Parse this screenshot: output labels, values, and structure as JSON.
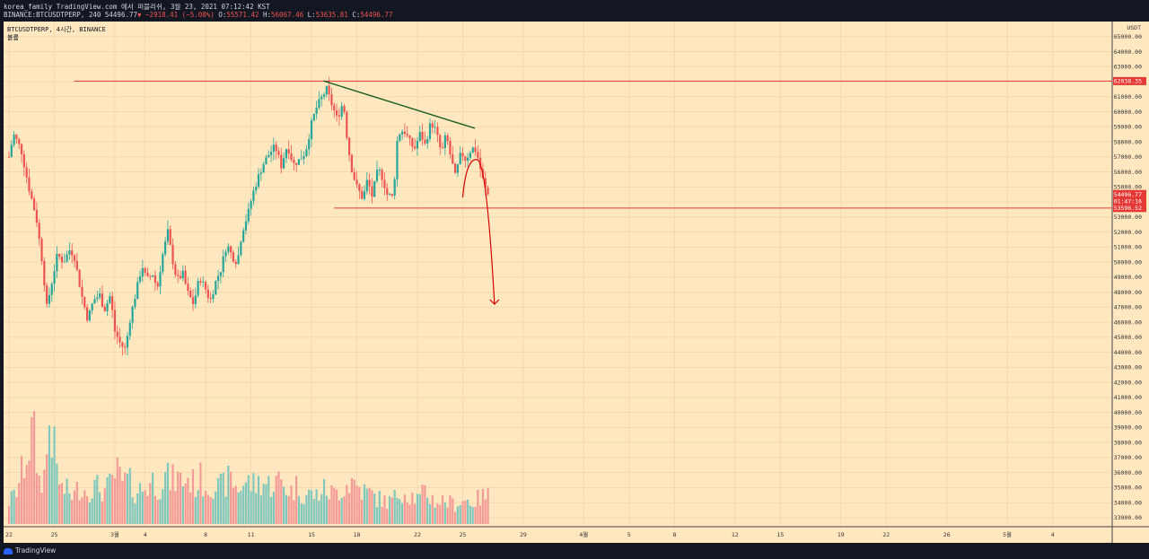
{
  "header": {
    "line1": "korea_family TradingView.com 에서 퍼블리쉬, 3월 23, 2021 07:12:42 KST",
    "symbol": "BINANCE:BTCUSDTPERP, 240",
    "price": "54496.77",
    "arrow": "▼",
    "change": "−2918.41 (−5.08%)",
    "o_label": "O:",
    "o_value": "55571.42",
    "h_label": "H:",
    "h_value": "56067.46",
    "l_label": "L:",
    "l_value": "53635.81",
    "c_label": "C:",
    "c_value": "54496.77"
  },
  "legend": {
    "title": "BTCUSDTPERP, 4시간, BINANCE",
    "volume": "볼륨"
  },
  "footer": {
    "brand": "TradingView"
  },
  "colors": {
    "background": "#ffe8c0",
    "up": "#26a69a",
    "down": "#ef5350",
    "vol_up": "#80c7bd",
    "vol_down": "#f49a98",
    "resistance": "#e53935",
    "trendline": "#1b5e20",
    "projection": "#d50000"
  },
  "chart_data": {
    "type": "candlestick",
    "axis_unit": "USDT",
    "ylim": [
      32400,
      66000
    ],
    "y_ticks": [
      33000,
      34000,
      35000,
      36000,
      37000,
      38000,
      39000,
      40000,
      41000,
      42000,
      43000,
      44000,
      45000,
      46000,
      47000,
      48000,
      49000,
      50000,
      51000,
      52000,
      53000,
      54000,
      55000,
      56000,
      57000,
      58000,
      59000,
      60000,
      61000,
      62000,
      63000,
      64000,
      65000
    ],
    "y_tick_labels": [
      "33000.00",
      "34000.00",
      "35000.00",
      "36000.00",
      "37000.00",
      "38000.00",
      "39000.00",
      "40000.00",
      "41000.00",
      "42000.00",
      "43000.00",
      "44000.00",
      "45000.00",
      "46000.00",
      "47000.00",
      "48000.00",
      "49000.00",
      "50000.00",
      "51000.00",
      "52000.00",
      "53000.00",
      "54000.00",
      "55000.00",
      "56000.00",
      "57000.00",
      "58000.00",
      "59000.00",
      "60000.00",
      "61000.00",
      "62000.00",
      "63000.00",
      "64000.00",
      "65000.00"
    ],
    "x_ticks": [
      "22",
      "25",
      "3월",
      "4",
      "8",
      "11",
      "15",
      "18",
      "22",
      "25",
      "29",
      "4월",
      "5",
      "8",
      "12",
      "15",
      "19",
      "22",
      "26",
      "5월",
      "4"
    ],
    "x_tick_days": [
      0,
      3,
      7,
      9,
      13,
      16,
      20,
      23,
      27,
      30,
      34,
      38,
      41,
      44,
      48,
      51,
      55,
      58,
      62,
      66,
      69
    ],
    "levels": [
      {
        "name": "resistance",
        "price": 62038.35,
        "label": "62038.35",
        "start_day": 4.3
      },
      {
        "name": "support",
        "price": 53596.52,
        "label": "53596.52",
        "start_day": 21.5
      },
      {
        "name": "last-price",
        "price": 54496.77,
        "label": "54496.77",
        "countdown": "01:47:16"
      }
    ],
    "trendline": {
      "from": {
        "day": 20.8,
        "price": 62050
      },
      "to": {
        "day": 30.8,
        "price": 58900
      }
    },
    "projection": {
      "from": {
        "day": 30.0,
        "price": 54300
      },
      "peak": {
        "day": 31.0,
        "price": 56800
      },
      "to": {
        "day": 32.1,
        "price": 47200
      }
    },
    "close_path": [
      [
        0,
        57000
      ],
      [
        0.3,
        58500
      ],
      [
        0.8,
        57500
      ],
      [
        1.3,
        55000
      ],
      [
        1.8,
        53000
      ],
      [
        2.2,
        50000
      ],
      [
        2.5,
        47000
      ],
      [
        2.8,
        48500
      ],
      [
        3.2,
        50500
      ],
      [
        3.6,
        50000
      ],
      [
        4.0,
        50800
      ],
      [
        4.3,
        50500
      ],
      [
        4.8,
        47800
      ],
      [
        5.2,
        46200
      ],
      [
        5.6,
        47500
      ],
      [
        6.0,
        47800
      ],
      [
        6.3,
        46800
      ],
      [
        6.7,
        47800
      ],
      [
        7.0,
        45400
      ],
      [
        7.4,
        44500
      ],
      [
        7.7,
        44200
      ],
      [
        8.0,
        46200
      ],
      [
        8.4,
        48000
      ],
      [
        8.8,
        49800
      ],
      [
        9.1,
        48800
      ],
      [
        9.5,
        49200
      ],
      [
        9.8,
        48200
      ],
      [
        10.1,
        50200
      ],
      [
        10.5,
        52000
      ],
      [
        10.8,
        50200
      ],
      [
        11.1,
        48800
      ],
      [
        11.5,
        49200
      ],
      [
        11.8,
        48000
      ],
      [
        12.2,
        47200
      ],
      [
        12.6,
        49000
      ],
      [
        13.0,
        48200
      ],
      [
        13.3,
        47400
      ],
      [
        13.7,
        48800
      ],
      [
        14.0,
        49500
      ],
      [
        14.4,
        51200
      ],
      [
        14.8,
        50300
      ],
      [
        15.1,
        50000
      ],
      [
        15.4,
        52000
      ],
      [
        15.8,
        53200
      ],
      [
        16.1,
        54500
      ],
      [
        16.5,
        55700
      ],
      [
        16.8,
        56500
      ],
      [
        17.2,
        57200
      ],
      [
        17.6,
        57700
      ],
      [
        18.0,
        56400
      ],
      [
        18.4,
        57800
      ],
      [
        18.8,
        56500
      ],
      [
        19.2,
        56800
      ],
      [
        19.6,
        57300
      ],
      [
        20.0,
        59200
      ],
      [
        20.3,
        60200
      ],
      [
        20.6,
        60800
      ],
      [
        21.0,
        61500
      ],
      [
        21.3,
        60600
      ],
      [
        21.7,
        59500
      ],
      [
        22.1,
        60700
      ],
      [
        22.4,
        57800
      ],
      [
        22.7,
        56000
      ],
      [
        23.0,
        55000
      ],
      [
        23.4,
        54200
      ],
      [
        23.7,
        55500
      ],
      [
        24.0,
        54400
      ],
      [
        24.4,
        56200
      ],
      [
        24.7,
        55600
      ],
      [
        25.0,
        54500
      ],
      [
        25.4,
        54300
      ],
      [
        25.7,
        58500
      ],
      [
        26.1,
        58800
      ],
      [
        26.5,
        58000
      ],
      [
        26.8,
        57500
      ],
      [
        27.2,
        58600
      ],
      [
        27.5,
        57800
      ],
      [
        27.9,
        59300
      ],
      [
        28.2,
        58800
      ],
      [
        28.6,
        57200
      ],
      [
        28.9,
        58500
      ],
      [
        29.2,
        57000
      ],
      [
        29.5,
        55700
      ],
      [
        29.9,
        57300
      ],
      [
        30.2,
        56800
      ],
      [
        30.6,
        57600
      ],
      [
        30.9,
        57400
      ],
      [
        31.3,
        55600
      ],
      [
        31.6,
        54497
      ]
    ],
    "volume_path": [
      [
        0,
        1050
      ],
      [
        0.4,
        1350
      ],
      [
        0.8,
        2200
      ],
      [
        1.2,
        3400
      ],
      [
        1.6,
        4300
      ],
      [
        2.0,
        2000
      ],
      [
        2.4,
        2300
      ],
      [
        2.7,
        5100
      ],
      [
        3.1,
        2700
      ],
      [
        3.5,
        1600
      ],
      [
        3.9,
        1500
      ],
      [
        4.3,
        1300
      ],
      [
        4.7,
        1800
      ],
      [
        5.1,
        1500
      ],
      [
        5.5,
        1700
      ],
      [
        5.9,
        1700
      ],
      [
        6.3,
        1500
      ],
      [
        6.7,
        1800
      ],
      [
        7.1,
        2400
      ],
      [
        7.5,
        1900
      ],
      [
        7.9,
        2000
      ],
      [
        8.3,
        1500
      ],
      [
        8.7,
        1600
      ],
      [
        9.1,
        1700
      ],
      [
        9.5,
        2000
      ],
      [
        9.9,
        1700
      ],
      [
        10.3,
        2200
      ],
      [
        10.7,
        2000
      ],
      [
        11.1,
        2100
      ],
      [
        11.5,
        2000
      ],
      [
        11.9,
        2100
      ],
      [
        12.3,
        1800
      ],
      [
        12.7,
        2100
      ],
      [
        13.1,
        1700
      ],
      [
        13.5,
        1900
      ],
      [
        13.9,
        1600
      ],
      [
        14.3,
        1900
      ],
      [
        14.7,
        2100
      ],
      [
        15.1,
        1600
      ],
      [
        15.5,
        1900
      ],
      [
        15.9,
        1900
      ],
      [
        16.3,
        1800
      ],
      [
        16.7,
        2000
      ],
      [
        17.1,
        1800
      ],
      [
        17.5,
        1900
      ],
      [
        17.9,
        2000
      ],
      [
        18.3,
        1700
      ],
      [
        18.7,
        1500
      ],
      [
        19.1,
        1800
      ],
      [
        19.5,
        1300
      ],
      [
        19.9,
        1400
      ],
      [
        20.3,
        1300
      ],
      [
        20.7,
        1600
      ],
      [
        21.1,
        1500
      ],
      [
        21.5,
        1400
      ],
      [
        21.9,
        1600
      ],
      [
        22.3,
        1800
      ],
      [
        22.7,
        2000
      ],
      [
        23.1,
        1700
      ],
      [
        23.5,
        1500
      ],
      [
        23.9,
        1400
      ],
      [
        24.3,
        1200
      ],
      [
        24.7,
        1100
      ],
      [
        25.1,
        1000
      ],
      [
        25.5,
        1200
      ],
      [
        25.9,
        1600
      ],
      [
        26.3,
        1400
      ],
      [
        26.7,
        1300
      ],
      [
        27.1,
        1100
      ],
      [
        27.5,
        1500
      ],
      [
        27.9,
        1200
      ],
      [
        28.3,
        1000
      ],
      [
        28.7,
        1100
      ],
      [
        29.1,
        1000
      ],
      [
        29.5,
        900
      ],
      [
        29.9,
        1050
      ],
      [
        30.3,
        1100
      ],
      [
        30.7,
        1000
      ],
      [
        31.1,
        1200
      ],
      [
        31.6,
        1300
      ]
    ]
  }
}
